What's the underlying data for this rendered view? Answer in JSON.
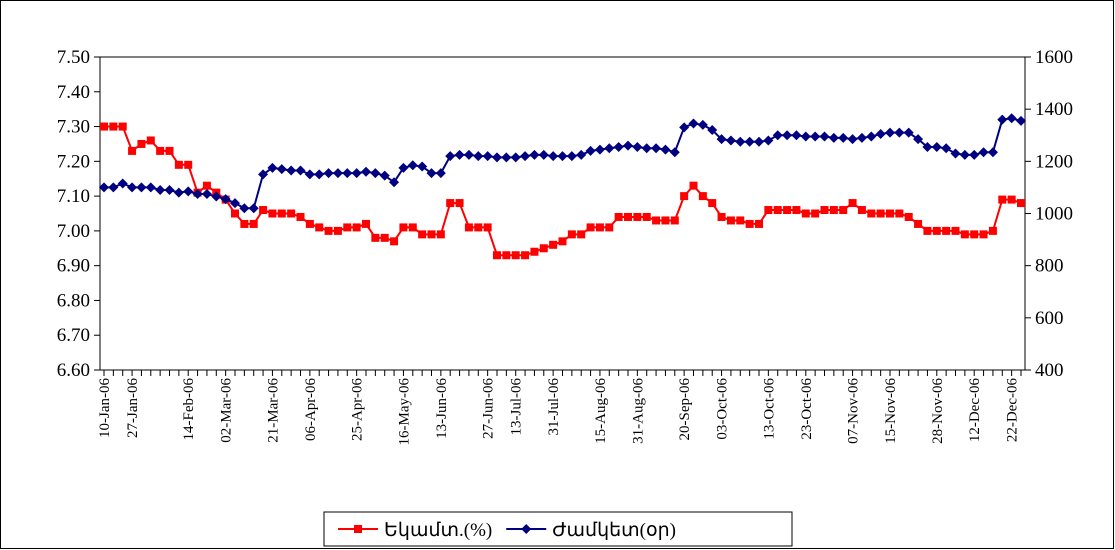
{
  "chart_data": {
    "type": "line",
    "categories": [
      "10-Jan-06",
      null,
      null,
      "27-Jan-06",
      null,
      null,
      null,
      null,
      null,
      "14-Feb-06",
      null,
      null,
      null,
      "02-Mar-06",
      null,
      null,
      null,
      null,
      "21-Mar-06",
      null,
      null,
      null,
      "06-Apr-06",
      null,
      null,
      null,
      null,
      "25-Apr-06",
      null,
      null,
      null,
      null,
      "16-May-06",
      null,
      null,
      null,
      "13-Jun-06",
      null,
      null,
      null,
      null,
      "27-Jun-06",
      null,
      null,
      "13-Jul-06",
      null,
      null,
      null,
      "31-Jul-06",
      null,
      null,
      null,
      null,
      "15-Aug-06",
      null,
      null,
      null,
      "31-Aug-06",
      null,
      null,
      null,
      null,
      "20-Sep-06",
      null,
      null,
      null,
      "03-Oct-06",
      null,
      null,
      null,
      null,
      "13-Oct-06",
      null,
      null,
      null,
      "23-Oct-06",
      null,
      null,
      null,
      null,
      "07-Nov-06",
      null,
      null,
      null,
      "15-Nov-06",
      null,
      null,
      null,
      null,
      "28-Nov-06",
      null,
      null,
      null,
      "12-Dec-06",
      null,
      null,
      null,
      "22-Dec-06",
      null
    ],
    "series": [
      {
        "name": "Եկամտ.(%)",
        "color": "#ff0000",
        "marker": "square",
        "axis": "y",
        "values": [
          7.3,
          7.3,
          7.3,
          7.23,
          7.25,
          7.26,
          7.23,
          7.23,
          7.19,
          7.19,
          7.11,
          7.13,
          7.11,
          7.09,
          7.05,
          7.02,
          7.02,
          7.06,
          7.05,
          7.05,
          7.05,
          7.04,
          7.02,
          7.01,
          7.0,
          7.0,
          7.01,
          7.01,
          7.02,
          6.98,
          6.98,
          6.97,
          7.01,
          7.01,
          6.99,
          6.99,
          6.99,
          7.08,
          7.08,
          7.01,
          7.01,
          7.01,
          6.93,
          6.93,
          6.93,
          6.93,
          6.94,
          6.95,
          6.96,
          6.97,
          6.99,
          6.99,
          7.01,
          7.01,
          7.01,
          7.04,
          7.04,
          7.04,
          7.04,
          7.03,
          7.03,
          7.03,
          7.1,
          7.13,
          7.1,
          7.08,
          7.04,
          7.03,
          7.03,
          7.02,
          7.02,
          7.06,
          7.06,
          7.06,
          7.06,
          7.05,
          7.05,
          7.06,
          7.06,
          7.06,
          7.08,
          7.06,
          7.05,
          7.05,
          7.05,
          7.05,
          7.04,
          7.02,
          7.0,
          7.0,
          7.0,
          7.0,
          6.99,
          6.99,
          6.99,
          7.0,
          7.09,
          7.09,
          7.08
        ]
      },
      {
        "name": "Ժամկետ(օր)",
        "color": "#000080",
        "marker": "diamond",
        "axis": "y2",
        "values": [
          1100,
          1100,
          1115,
          1100,
          1100,
          1100,
          1090,
          1090,
          1080,
          1085,
          1075,
          1075,
          1065,
          1055,
          1040,
          1020,
          1020,
          1150,
          1175,
          1170,
          1165,
          1165,
          1150,
          1150,
          1155,
          1155,
          1155,
          1155,
          1160,
          1155,
          1145,
          1120,
          1175,
          1185,
          1180,
          1155,
          1155,
          1220,
          1225,
          1225,
          1220,
          1220,
          1215,
          1215,
          1215,
          1220,
          1225,
          1225,
          1220,
          1220,
          1220,
          1225,
          1240,
          1245,
          1250,
          1255,
          1260,
          1255,
          1250,
          1250,
          1245,
          1235,
          1330,
          1345,
          1340,
          1320,
          1285,
          1280,
          1275,
          1275,
          1275,
          1280,
          1300,
          1300,
          1300,
          1295,
          1295,
          1295,
          1290,
          1290,
          1285,
          1290,
          1295,
          1305,
          1310,
          1310,
          1310,
          1285,
          1255,
          1255,
          1250,
          1230,
          1225,
          1225,
          1235,
          1235,
          1360,
          1365,
          1355
        ]
      }
    ],
    "ylim": [
      6.6,
      7.5
    ],
    "yticks": [
      {
        "value": 6.6,
        "label": "6.60"
      },
      {
        "value": 6.7,
        "label": "6.70"
      },
      {
        "value": 6.8,
        "label": "6.80"
      },
      {
        "value": 6.9,
        "label": "6.90"
      },
      {
        "value": 7.0,
        "label": "7.00"
      },
      {
        "value": 7.1,
        "label": "7.10"
      },
      {
        "value": 7.2,
        "label": "7.20"
      },
      {
        "value": 7.3,
        "label": "7.30"
      },
      {
        "value": 7.4,
        "label": "7.40"
      },
      {
        "value": 7.5,
        "label": "7.50"
      }
    ],
    "y2lim": [
      400,
      1600
    ],
    "y2ticks": [
      400,
      600,
      800,
      1000,
      1200,
      1400,
      1600
    ],
    "grid": false,
    "legend": "bottom"
  }
}
